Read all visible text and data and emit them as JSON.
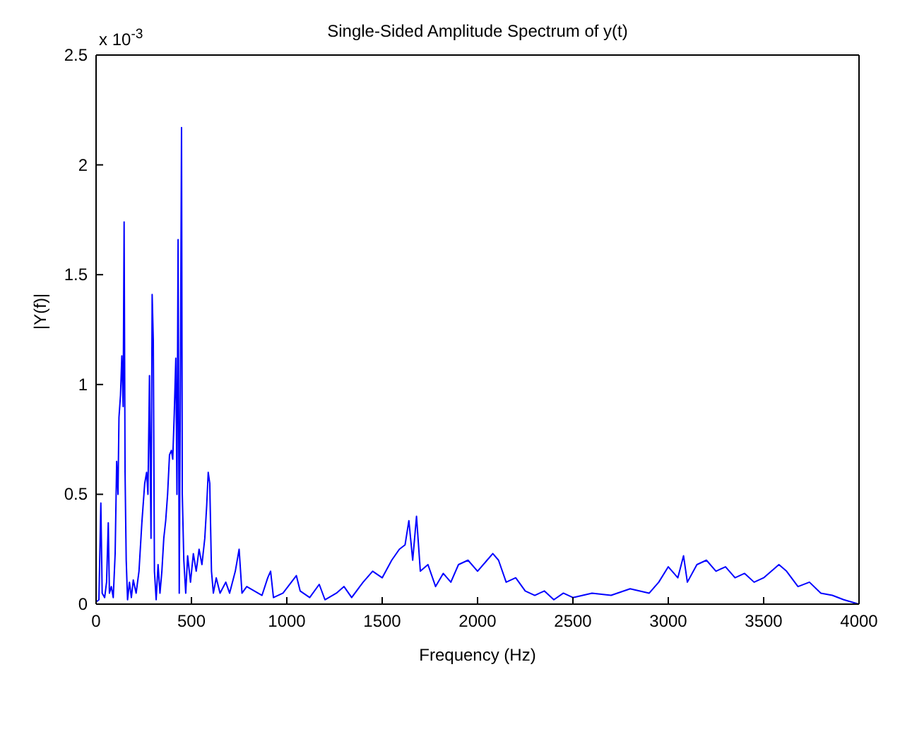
{
  "chart_data": {
    "type": "line",
    "title": "Single-Sided Amplitude Spectrum of y(t)",
    "xlabel": "Frequency (Hz)",
    "ylabel": "|Y(f)|",
    "annotations": [
      "x 10$^{-3}$"
    ],
    "x": [
      0,
      15,
      25,
      32,
      45,
      55,
      64,
      70,
      80,
      90,
      100,
      108,
      115,
      120,
      128,
      135,
      142,
      147,
      152,
      158,
      165,
      175,
      185,
      195,
      210,
      225,
      240,
      255,
      265,
      272,
      280,
      288,
      294,
      300,
      306,
      315,
      325,
      335,
      345,
      355,
      365,
      375,
      385,
      395,
      402,
      410,
      418,
      424,
      430,
      436,
      442,
      448,
      452,
      460,
      470,
      480,
      495,
      510,
      525,
      540,
      555,
      570,
      580,
      588,
      596,
      605,
      615,
      630,
      650,
      680,
      700,
      730,
      750,
      765,
      790,
      830,
      870,
      900,
      915,
      930,
      980,
      1050,
      1070,
      1120,
      1170,
      1200,
      1260,
      1300,
      1340,
      1400,
      1450,
      1500,
      1550,
      1590,
      1620,
      1640,
      1660,
      1680,
      1700,
      1740,
      1780,
      1820,
      1860,
      1900,
      1950,
      2000,
      2050,
      2080,
      2110,
      2150,
      2200,
      2250,
      2300,
      2350,
      2400,
      2450,
      2500,
      2600,
      2700,
      2800,
      2900,
      2950,
      3000,
      3050,
      3080,
      3100,
      3150,
      3200,
      3250,
      3300,
      3350,
      3400,
      3450,
      3500,
      3580,
      3620,
      3680,
      3740,
      3800,
      3860,
      3920,
      3980,
      4000
    ],
    "series": [
      {
        "color": "#0000ff",
        "values": [
          0.01,
          0.02,
          0.46,
          0.05,
          0.03,
          0.1,
          0.37,
          0.05,
          0.08,
          0.03,
          0.23,
          0.65,
          0.5,
          0.85,
          0.95,
          1.13,
          0.9,
          1.74,
          0.6,
          0.2,
          0.02,
          0.1,
          0.03,
          0.11,
          0.05,
          0.15,
          0.37,
          0.55,
          0.6,
          0.5,
          1.04,
          0.3,
          1.41,
          1.2,
          0.15,
          0.02,
          0.18,
          0.05,
          0.15,
          0.3,
          0.38,
          0.5,
          0.68,
          0.7,
          0.66,
          0.87,
          1.12,
          0.5,
          1.66,
          0.05,
          1.0,
          2.17,
          0.5,
          0.2,
          0.05,
          0.22,
          0.1,
          0.23,
          0.15,
          0.25,
          0.18,
          0.3,
          0.45,
          0.6,
          0.55,
          0.15,
          0.05,
          0.12,
          0.05,
          0.1,
          0.05,
          0.15,
          0.25,
          0.05,
          0.08,
          0.06,
          0.04,
          0.12,
          0.15,
          0.03,
          0.05,
          0.13,
          0.06,
          0.03,
          0.09,
          0.02,
          0.05,
          0.08,
          0.03,
          0.1,
          0.15,
          0.12,
          0.2,
          0.25,
          0.27,
          0.38,
          0.2,
          0.4,
          0.15,
          0.18,
          0.08,
          0.14,
          0.1,
          0.18,
          0.2,
          0.15,
          0.2,
          0.23,
          0.2,
          0.1,
          0.12,
          0.06,
          0.04,
          0.06,
          0.02,
          0.05,
          0.03,
          0.05,
          0.04,
          0.07,
          0.05,
          0.1,
          0.17,
          0.12,
          0.22,
          0.1,
          0.18,
          0.2,
          0.15,
          0.17,
          0.12,
          0.14,
          0.1,
          0.12,
          0.18,
          0.15,
          0.08,
          0.1,
          0.05,
          0.04,
          0.02,
          0.005,
          0
        ]
      }
    ],
    "xlim": [
      0,
      4000
    ],
    "xticks": [
      0,
      500,
      1000,
      1500,
      2000,
      2500,
      3000,
      3500,
      4000
    ],
    "ylim": [
      0,
      2.5
    ],
    "yticks": [
      0,
      0.5,
      1,
      1.5,
      2,
      2.5
    ],
    "grid": false,
    "legend": false,
    "marker": "none",
    "line_style": "solid"
  }
}
